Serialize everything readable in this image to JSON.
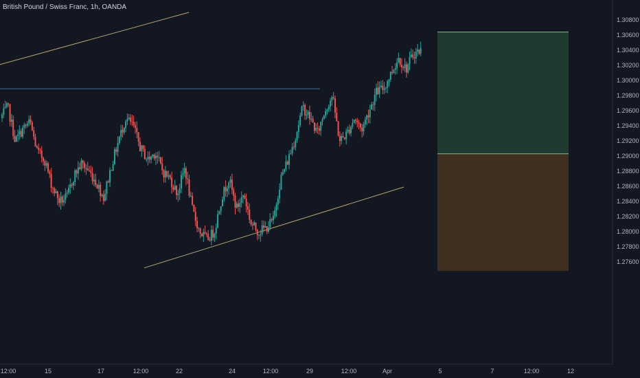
{
  "header": {
    "symbol_title": "British Pound / Swiss Franc, 1h, OANDA"
  },
  "colors": {
    "background": "#131722",
    "up": "#26a69a",
    "down": "#ef5350",
    "trendline": "#b5a66a",
    "hline": "#3b6f9c",
    "target_zone": "#1f3a2e",
    "target_border": "#7fbf7f",
    "stop_zone": "#3e2f1e",
    "axis_text": "#b2b5be"
  },
  "chart_data": {
    "type": "candlestick",
    "title": "British Pound / Swiss Franc, 1h, OANDA",
    "y_ticks": [
      "1.30800",
      "1.30600",
      "1.30400",
      "1.30200",
      "1.30000",
      "1.29800",
      "1.29600",
      "1.29400",
      "1.29200",
      "1.29000",
      "1.28800",
      "1.28600",
      "1.28400",
      "1.28200",
      "1.28000",
      "1.27800",
      "1.27600"
    ],
    "ylim": [
      1.2748,
      1.3096
    ],
    "x_ticks": [
      "12:00",
      "15",
      "17",
      "12:00",
      "22",
      "24",
      "12:00",
      "29",
      "12:00",
      "Apr",
      "5",
      "7",
      "12:00",
      "12"
    ],
    "close_path": [
      1.295,
      1.2965,
      1.292,
      1.2935,
      1.2945,
      1.2905,
      1.2895,
      1.286,
      1.284,
      1.2845,
      1.2875,
      1.289,
      1.288,
      1.2865,
      1.2845,
      1.2885,
      1.292,
      1.295,
      1.294,
      1.291,
      1.2895,
      1.2905,
      1.288,
      1.287,
      1.285,
      1.2885,
      1.283,
      1.28,
      1.279,
      1.28,
      1.2845,
      1.287,
      1.283,
      1.285,
      1.281,
      1.28,
      1.2805,
      1.2815,
      1.287,
      1.2895,
      1.2925,
      1.2965,
      1.295,
      1.293,
      1.296,
      1.298,
      1.292,
      1.293,
      1.295,
      1.2935,
      1.296,
      1.2985,
      1.299,
      1.301,
      1.303,
      1.3015,
      1.3035,
      1.304
    ],
    "horizontal_line": {
      "value": 1.2989
    },
    "trend_lines": [
      {
        "from": {
          "x": "start",
          "y": 1.3021
        },
        "to": {
          "x": "near-15",
          "y": 1.309
        }
      },
      {
        "from": {
          "x": "after-12:00",
          "y": 1.2752
        },
        "to": {
          "x": "near-Apr",
          "y": 1.2859
        }
      }
    ],
    "position": {
      "type": "long",
      "target": 1.3064,
      "entry": 1.2903,
      "stop": 1.2748,
      "x_range": [
        "before-5",
        "12"
      ]
    },
    "grid": false
  }
}
